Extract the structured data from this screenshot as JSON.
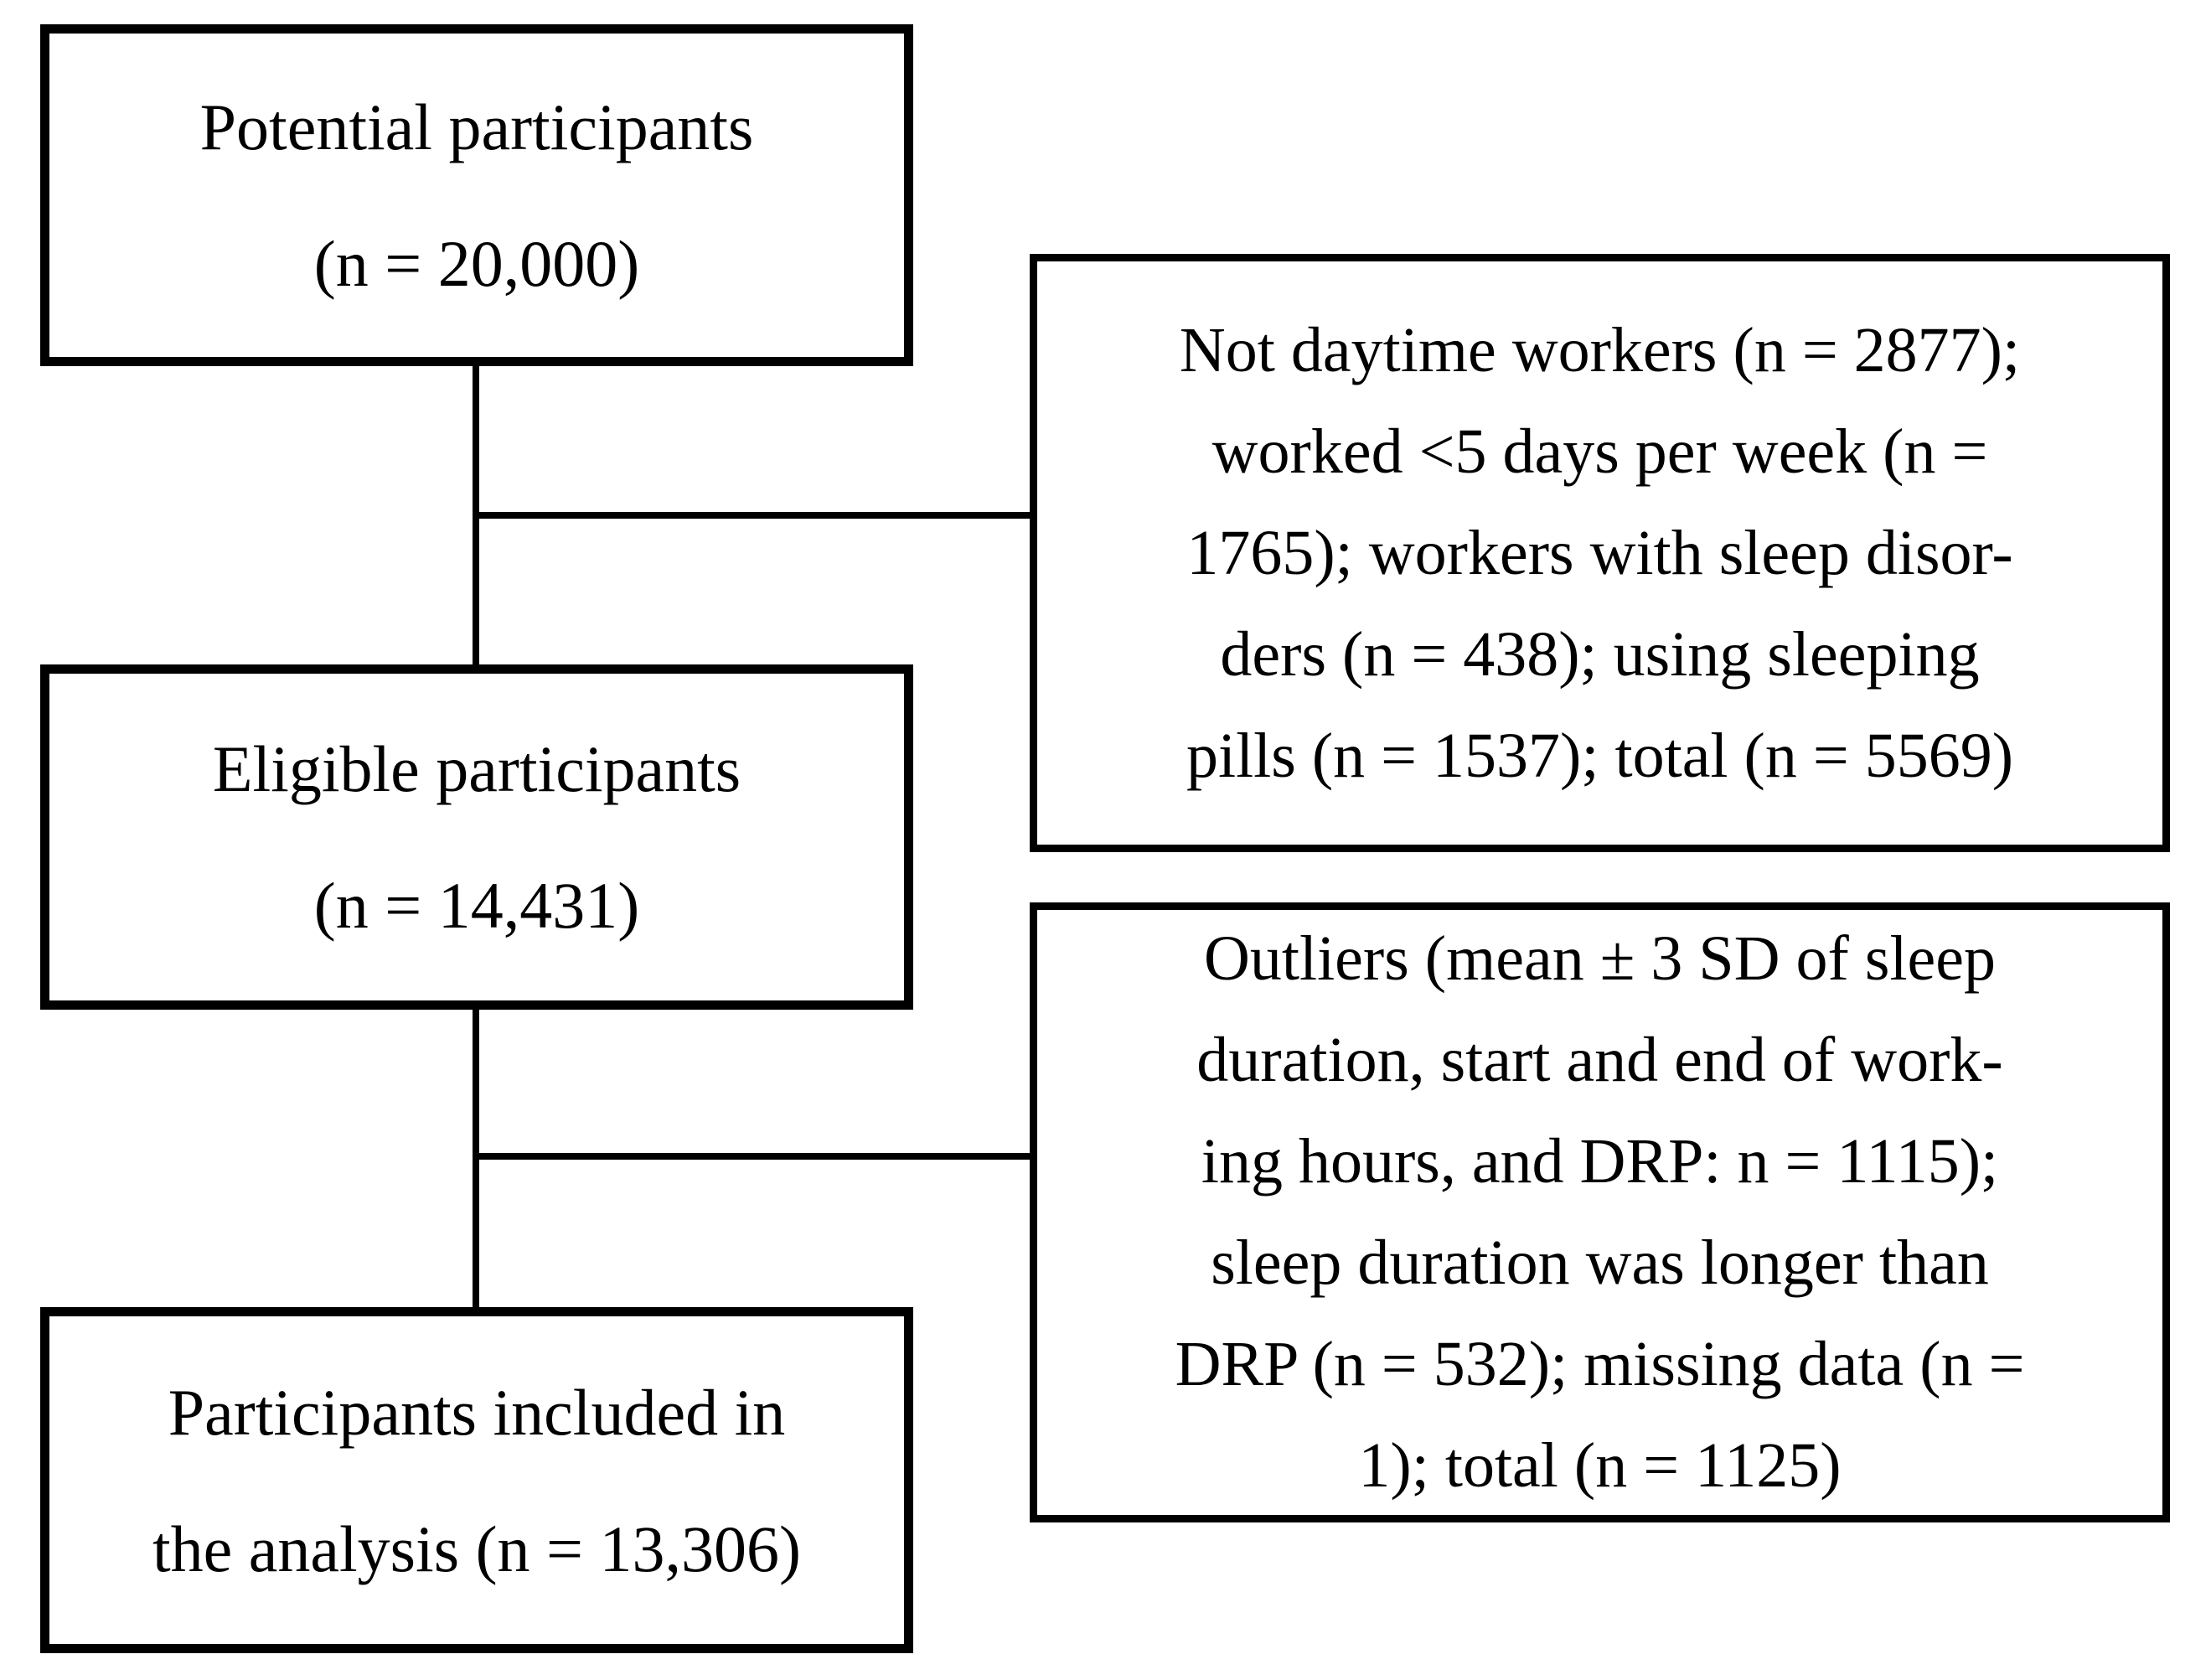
{
  "figure": {
    "type": "flowchart",
    "background_color": "#ffffff",
    "line_color": "#000000",
    "text_color": "#000000"
  },
  "flow_boxes": [
    {
      "id": "potential-participants",
      "lines": [
        "Potential participants",
        "(n = 20,000)"
      ]
    },
    {
      "id": "eligible-participants",
      "lines": [
        "Eligible participants",
        "(n = 14,431)"
      ]
    },
    {
      "id": "participants-included",
      "lines": [
        "Participants included in",
        "the analysis (n = 13,306)"
      ]
    }
  ],
  "exclusion_boxes": [
    {
      "id": "exclusion-criteria-1",
      "lines": [
        "Not daytime workers (n = 2877);",
        "worked <5 days per week (n =",
        "1765); workers with sleep disor-",
        "ders (n = 438); using sleeping",
        "pills (n = 1537); total (n = 5569)"
      ]
    },
    {
      "id": "exclusion-criteria-2",
      "lines": [
        "Outliers (mean ± 3 SD of sleep",
        "duration, start and end of work-",
        "ing hours, and DRP: n = 1115);",
        "sleep duration was longer than",
        "DRP (n = 532); missing data (n =",
        "1); total (n = 1125)"
      ]
    }
  ]
}
